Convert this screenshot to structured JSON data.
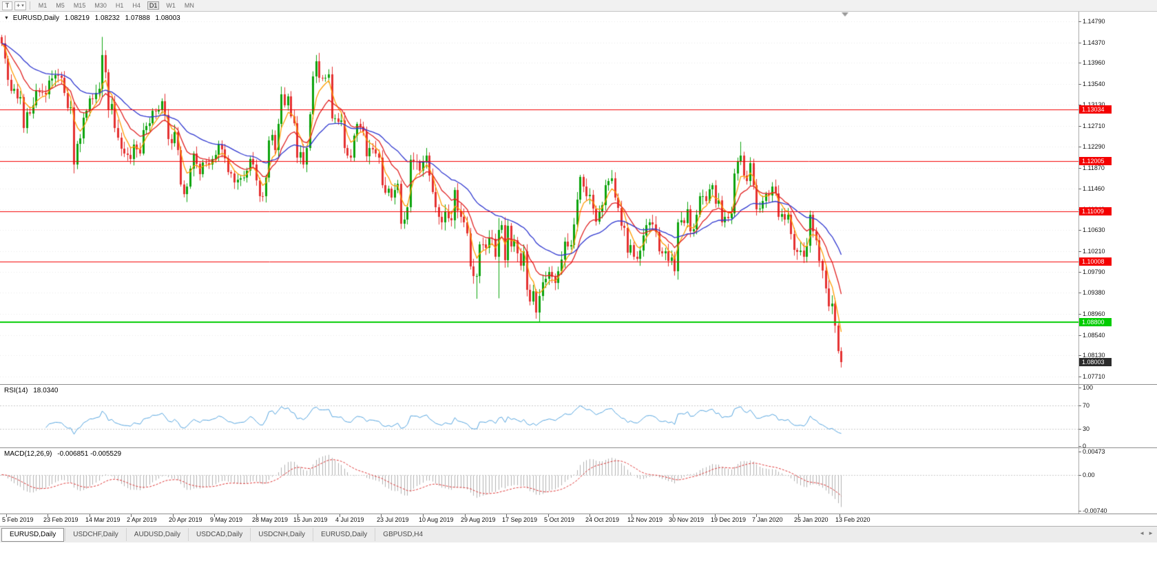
{
  "icons": {
    "t_tool": "T",
    "cursor_tool": "+",
    "dropdown_caret": "▾",
    "symbol_dropdown": "▼",
    "tab_scroll_left": "◄",
    "tab_scroll_right": "►"
  },
  "toolbar": {
    "timeframes": [
      "M1",
      "M5",
      "M15",
      "M30",
      "H1",
      "H4",
      "D1",
      "W1",
      "MN"
    ],
    "active_timeframe": "D1"
  },
  "chart": {
    "symbol_line": {
      "symbol": "EURUSD,Daily",
      "open": "1.08219",
      "high": "1.08232",
      "low": "1.07888",
      "close": "1.08003"
    }
  },
  "indicators": {
    "rsi": {
      "name": "RSI(14)",
      "value": "18.0340"
    },
    "macd": {
      "name": "MACD(12,26,9)",
      "value": "-0.006851 -0.005529"
    }
  },
  "tabs": [
    {
      "label": "EURUSD,Daily",
      "active": true
    },
    {
      "label": "USDCHF,Daily"
    },
    {
      "label": "AUDUSD,Daily"
    },
    {
      "label": "USDCAD,Daily"
    },
    {
      "label": "USDCNH,Daily"
    },
    {
      "label": "EURUSD,Daily"
    },
    {
      "label": "GBPUSD,H4"
    }
  ],
  "chart_data": {
    "type": "candlestick",
    "symbol": "EURUSD",
    "period": "Daily",
    "y_top": 1.1479,
    "y_bottom": 1.0771,
    "price_axis_ticks": [
      "1.14790",
      "1.14370",
      "1.13960",
      "1.13540",
      "1.13130",
      "1.12710",
      "1.12290",
      "1.11870",
      "1.11460",
      "1.11040",
      "1.10630",
      "1.10210",
      "1.09790",
      "1.09380",
      "1.08960",
      "1.08540",
      "1.08130",
      "1.07710"
    ],
    "date_ticks": [
      "5 Feb 2019",
      "23 Feb 2019",
      "14 Mar 2019",
      "2 Apr 2019",
      "20 Apr 2019",
      "9 May 2019",
      "28 May 2019",
      "15 Jun 2019",
      "4 Jul 2019",
      "23 Jul 2019",
      "10 Aug 2019",
      "29 Aug 2019",
      "17 Sep 2019",
      "5 Oct 2019",
      "24 Oct 2019",
      "12 Nov 2019",
      "30 Nov 2019",
      "19 Dec 2019",
      "7 Jan 2020",
      "25 Jan 2020",
      "13 Feb 2020"
    ],
    "levels": [
      {
        "price": 1.13034,
        "label": "1.13034",
        "color": "#f40000"
      },
      {
        "price": 1.12005,
        "label": "1.12005",
        "color": "#f40000"
      },
      {
        "price": 1.11009,
        "label": "1.11009",
        "color": "#f40000"
      },
      {
        "price": 1.10008,
        "label": "1.10008",
        "color": "#f40000"
      },
      {
        "price": 1.088,
        "label": "1.08800",
        "color": "#00cc00"
      }
    ],
    "current_price": {
      "price": 1.08003,
      "label": "1.08003",
      "color": "#2b2b2b"
    },
    "first_open": 1.1448,
    "closes": [
      1.1435,
      1.1405,
      1.1362,
      1.134,
      1.1345,
      1.1325,
      1.1328,
      1.1266,
      1.1298,
      1.1295,
      1.1311,
      1.134,
      1.1338,
      1.1336,
      1.1334,
      1.1361,
      1.1365,
      1.1372,
      1.137,
      1.1366,
      1.1336,
      1.1306,
      1.1308,
      1.1194,
      1.1235,
      1.1246,
      1.1287,
      1.13,
      1.1325,
      1.1324,
      1.1336,
      1.1344,
      1.1412,
      1.1377,
      1.1302,
      1.1314,
      1.1267,
      1.1247,
      1.1225,
      1.1216,
      1.1213,
      1.1204,
      1.1234,
      1.1224,
      1.1216,
      1.1262,
      1.127,
      1.1276,
      1.13,
      1.1299,
      1.1304,
      1.132,
      1.1293,
      1.1245,
      1.1236,
      1.1258,
      1.1223,
      1.1154,
      1.1134,
      1.115,
      1.1185,
      1.1215,
      1.1195,
      1.1174,
      1.1198,
      1.1197,
      1.1193,
      1.1204,
      1.1213,
      1.1233,
      1.1224,
      1.1206,
      1.1178,
      1.1176,
      1.1158,
      1.1163,
      1.1166,
      1.1168,
      1.1181,
      1.1205,
      1.1194,
      1.1162,
      1.1131,
      1.113,
      1.1168,
      1.1241,
      1.1253,
      1.1222,
      1.1275,
      1.1333,
      1.1312,
      1.1329,
      1.129,
      1.1276,
      1.1208,
      1.1218,
      1.1194,
      1.1226,
      1.1294,
      1.1369,
      1.14,
      1.1367,
      1.1366,
      1.1367,
      1.1373,
      1.1285,
      1.1285,
      1.1278,
      1.1282,
      1.1226,
      1.1212,
      1.1208,
      1.1251,
      1.1274,
      1.1269,
      1.1259,
      1.121,
      1.1227,
      1.1224,
      1.1216,
      1.1208,
      1.1152,
      1.1138,
      1.1146,
      1.1128,
      1.1143,
      1.1155,
      1.1075,
      1.1084,
      1.1108,
      1.1203,
      1.12,
      1.1199,
      1.1181,
      1.12,
      1.1212,
      1.1171,
      1.1139,
      1.1108,
      1.109,
      1.1078,
      1.11,
      1.1086,
      1.1082,
      1.1143,
      1.1101,
      1.109,
      1.1078,
      1.1057,
      1.099,
      1.0971,
      1.0972,
      1.1035,
      1.1034,
      1.1028,
      1.1047,
      1.1045,
      1.101,
      1.1063,
      1.1073,
      1.1003,
      1.1072,
      1.1031,
      1.1043,
      1.1017,
      1.0992,
      1.1021,
      1.0944,
      1.092,
      1.0941,
      1.0899,
      1.0932,
      1.0959,
      1.0966,
      1.0979,
      1.097,
      1.0957,
      1.0981,
      1.1004,
      1.104,
      1.103,
      1.1033,
      1.1074,
      1.1124,
      1.1169,
      1.115,
      1.113,
      1.1133,
      1.1106,
      1.108,
      1.11,
      1.1113,
      1.1152,
      1.1161,
      1.1166,
      1.1128,
      1.1107,
      1.1072,
      1.1068,
      1.1018,
      1.1033,
      1.101,
      1.1005,
      1.1022,
      1.1052,
      1.1073,
      1.1078,
      1.1074,
      1.1059,
      1.1021,
      1.1016,
      1.1021,
      1.1002,
      1.1008,
      1.0981,
      1.1078,
      1.1082,
      1.1077,
      1.1104,
      1.106,
      1.1064,
      1.1093,
      1.113,
      1.113,
      1.1121,
      1.1144,
      1.1152,
      1.1115,
      1.1122,
      1.1078,
      1.1089,
      1.1086,
      1.1096,
      1.1176,
      1.1199,
      1.1212,
      1.1172,
      1.116,
      1.1196,
      1.1152,
      1.1105,
      1.1106,
      1.1121,
      1.1134,
      1.1132,
      1.115,
      1.1136,
      1.109,
      1.1095,
      1.1084,
      1.1093,
      1.1055,
      1.1023,
      1.1019,
      1.1022,
      1.101,
      1.1032,
      1.1093,
      1.106,
      1.1043,
      1.1001,
      1.0982,
      1.0946,
      1.0911,
      1.0917,
      1.0873,
      1.0822,
      1.08
    ],
    "extremes": {
      "23": {
        "l": 1.1176
      },
      "32": {
        "h": 1.1448
      },
      "100": {
        "h": 1.1412
      },
      "151": {
        "l": 1.0926
      },
      "158": {
        "h": 1.1087,
        "l": 1.0927
      },
      "171": {
        "l": 1.0879
      },
      "235": {
        "h": 1.1239
      },
      "267": {
        "h": 1.0823,
        "l": 1.0789
      }
    },
    "colors": {
      "up": "#0ba30b",
      "down": "#e53030",
      "ma_fast": "#ff9c00",
      "ma_mid": "#e02020",
      "ma_slow": "#2d35cf",
      "rsi": "#53a3de",
      "macd_hist": "#b0b0b0",
      "macd_signal": "#dd3333",
      "grid": "#e8e8e8"
    },
    "moving_average_periods": {
      "fast": 5,
      "mid": 13,
      "slow": 34
    },
    "rsi_axis": {
      "period": 14,
      "ticks": [
        "100",
        "70",
        "30",
        "0"
      ],
      "levels": [
        70,
        30
      ],
      "last": 18.034
    },
    "macd_axis": {
      "fast": 12,
      "slow": 26,
      "signal": 9,
      "ticks": [
        "0.00473",
        "0.00",
        "-0.00740"
      ],
      "top": 0.00473,
      "bottom": -0.0074,
      "last_macd": -0.006851,
      "last_signal": -0.005529
    }
  }
}
